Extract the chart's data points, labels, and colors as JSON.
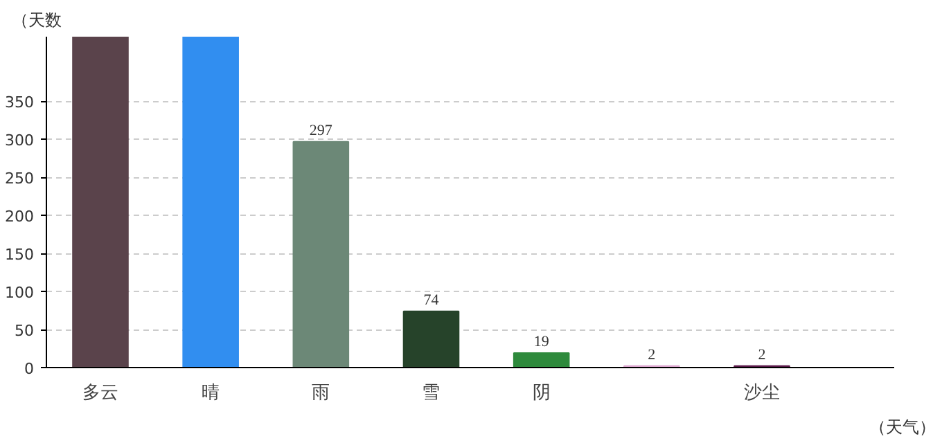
{
  "chart_data": {
    "type": "bar",
    "xlabel": "（天气）",
    "ylabel": "（天数",
    "categories": [
      "多云",
      "晴",
      "雨",
      "雪",
      "阴",
      null,
      "沙尘"
    ],
    "values": [
      435,
      435,
      297,
      74,
      19,
      2,
      2
    ],
    "value_labels": [
      null,
      null,
      "297",
      "74",
      "19",
      "2",
      "2"
    ],
    "colors": [
      "#5a434b",
      "#318ef0",
      "#6c8877",
      "#26432a",
      "#2e8a3c",
      "#dca6cf",
      "#5a1848"
    ],
    "ylim": [
      0,
      435
    ],
    "yticks": [
      0,
      50,
      100,
      150,
      200,
      250,
      300,
      350
    ],
    "grid": "y"
  }
}
